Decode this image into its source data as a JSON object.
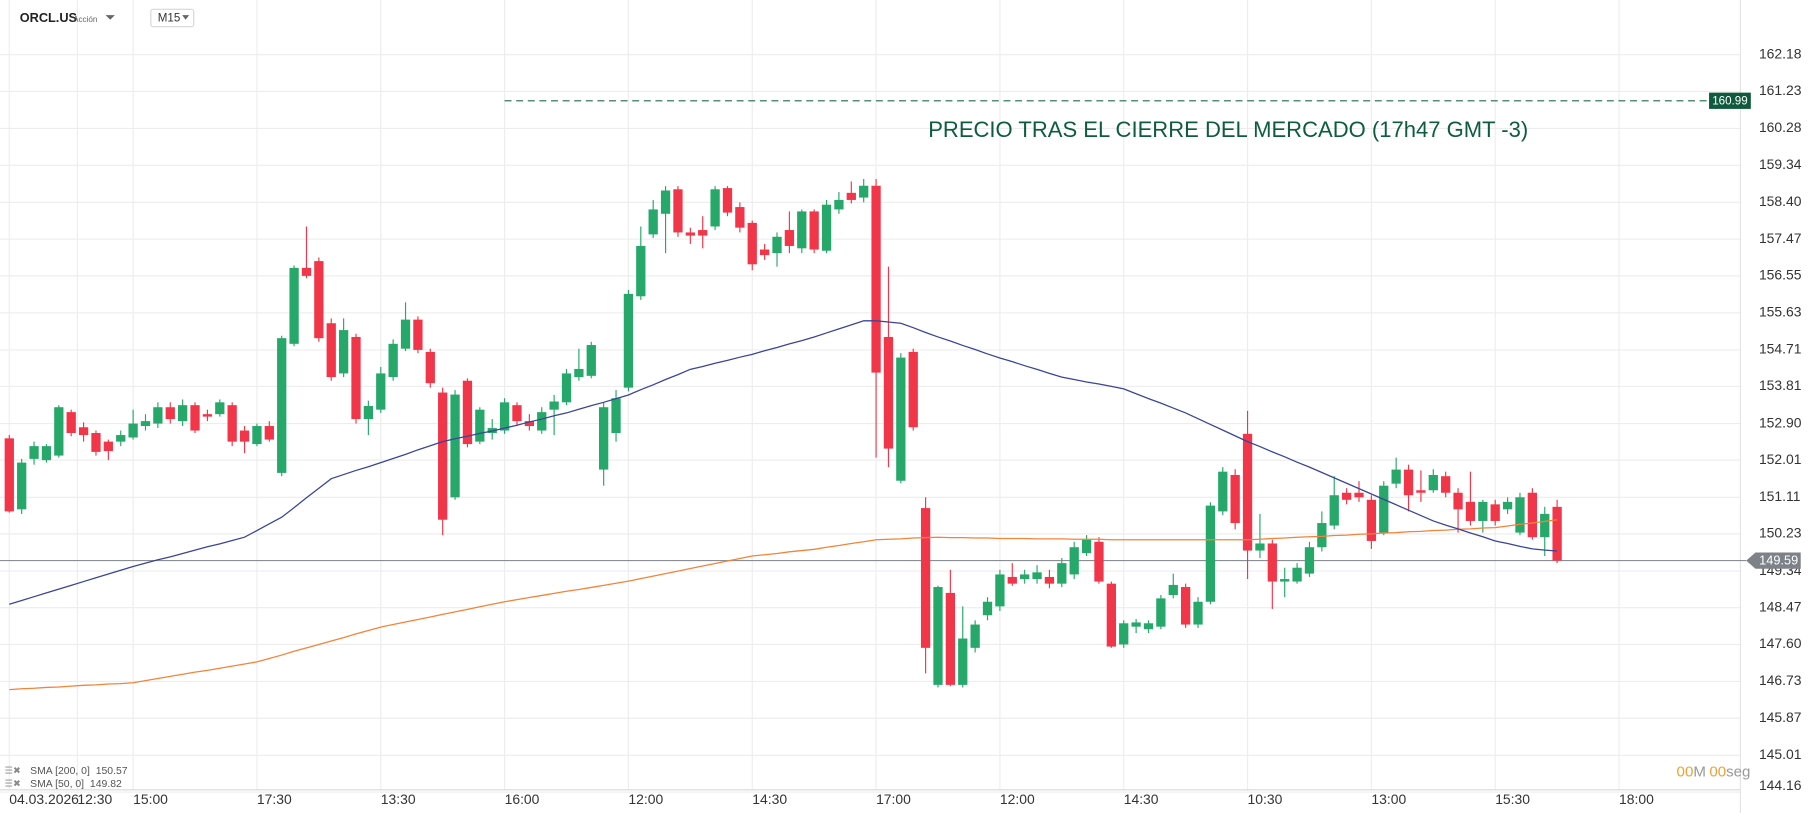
{
  "header": {
    "symbol": "ORCL.US",
    "instrument": "Acción",
    "timeframe": "M15"
  },
  "chart_data": {
    "type": "candlestick",
    "open": [
      152.54,
      150.82,
      152.04,
      152.01,
      152.12,
      153.18,
      152.81,
      152.67,
      152.46,
      152.46,
      152.56,
      152.84,
      152.9,
      153.3,
      152.96,
      153.35,
      153.13,
      153.13,
      153.35,
      152.73,
      152.4,
      152.84,
      151.7,
      154.86,
      156.75,
      156.92,
      155.37,
      154.13,
      155.03,
      153.01,
      153.24,
      154.04,
      154.74,
      155.46,
      154.66,
      153.66,
      151.11,
      153.95,
      152.46,
      152.67,
      152.73,
      153.35,
      152.96,
      152.73,
      153.24,
      153.42,
      154.04,
      154.07,
      151.78,
      152.67,
      153.78,
      156.04,
      157.59,
      158.11,
      158.73,
      157.64,
      157.7,
      157.79,
      158.76,
      158.28,
      157.88,
      157.21,
      157.12,
      157.7,
      157.24,
      158.17,
      157.18,
      158.22,
      158.64,
      158.52,
      158.82,
      155.03,
      151.51,
      154.66,
      150.85,
      146.65,
      148.82,
      146.65,
      147.52,
      148.29,
      148.5,
      149.2,
      149.15,
      149.15,
      149.2,
      149.04,
      149.26,
      149.77,
      150.04,
      149.04,
      147.6,
      148.02,
      147.96,
      148.02,
      148.77,
      148.96,
      148.07,
      148.61,
      150.77,
      151.65,
      152.65,
      149.83,
      150.0,
      149.09,
      149.09,
      149.28,
      149.91,
      150.43,
      151.22,
      151.22,
      151.05,
      150.26,
      151.44,
      151.78,
      151.28,
      151.28,
      151.62,
      151.22,
      151.0,
      150.54,
      150.94,
      150.82,
      150.26,
      151.22,
      150.15,
      150.88
    ],
    "high": [
      152.62,
      152.04,
      152.46,
      152.4,
      153.35,
      153.24,
      152.93,
      152.73,
      152.51,
      152.73,
      153.24,
      153.13,
      153.42,
      153.42,
      153.49,
      153.42,
      153.24,
      153.49,
      153.42,
      152.84,
      152.9,
      152.96,
      155.06,
      156.81,
      157.79,
      157.01,
      155.49,
      155.49,
      155.11,
      153.46,
      154.29,
      154.97,
      155.89,
      155.54,
      154.74,
      153.78,
      153.72,
      154.01,
      153.3,
      153.01,
      153.52,
      153.42,
      153.13,
      153.3,
      153.6,
      154.24,
      154.74,
      154.91,
      153.42,
      153.72,
      156.2,
      157.79,
      158.46,
      158.81,
      158.81,
      157.76,
      158.05,
      158.81,
      158.81,
      158.4,
      157.94,
      157.35,
      157.64,
      158.17,
      158.22,
      158.22,
      158.46,
      158.66,
      158.93,
      158.99,
      158.99,
      156.78,
      154.63,
      154.74,
      151.11,
      148.99,
      149.37,
      148.5,
      148.17,
      148.72,
      149.37,
      149.53,
      149.37,
      149.48,
      149.37,
      149.65,
      150.04,
      150.2,
      150.15,
      149.09,
      148.17,
      148.2,
      148.17,
      148.77,
      149.28,
      149.04,
      148.72,
      150.99,
      151.84,
      151.79,
      153.21,
      150.71,
      150.09,
      149.42,
      149.53,
      150.04,
      150.77,
      151.62,
      151.33,
      151.5,
      151.16,
      151.5,
      152.07,
      151.9,
      151.76,
      151.79,
      151.73,
      151.33,
      151.73,
      151.05,
      151.05,
      151.11,
      151.22,
      151.33,
      150.88,
      151.05
    ],
    "low": [
      150.74,
      150.71,
      151.9,
      151.95,
      152.07,
      152.59,
      152.46,
      152.12,
      152.01,
      152.35,
      152.51,
      152.73,
      152.79,
      152.9,
      152.84,
      152.67,
      152.96,
      153.07,
      152.35,
      152.18,
      152.35,
      152.46,
      151.62,
      154.8,
      156.49,
      154.91,
      153.95,
      154.04,
      152.9,
      152.62,
      153.16,
      153.95,
      154.68,
      154.63,
      153.78,
      150.2,
      151.05,
      152.32,
      152.4,
      152.51,
      152.65,
      152.84,
      152.73,
      152.65,
      152.62,
      153.35,
      153.95,
      154.01,
      151.39,
      152.46,
      153.69,
      155.95,
      157.5,
      157.12,
      157.53,
      157.35,
      157.24,
      157.7,
      158.05,
      157.64,
      156.69,
      156.95,
      156.78,
      157.12,
      157.12,
      157.12,
      157.12,
      158.11,
      158.37,
      158.4,
      152.07,
      151.84,
      151.45,
      152.73,
      146.92,
      146.59,
      146.62,
      146.59,
      147.41,
      148.17,
      148.39,
      148.99,
      149.04,
      149.04,
      148.93,
      148.96,
      149.15,
      149.7,
      149.04,
      147.52,
      147.52,
      147.87,
      147.87,
      147.96,
      148.69,
      147.99,
      147.99,
      148.55,
      150.68,
      150.34,
      149.15,
      149.65,
      148.44,
      148.72,
      149.04,
      149.2,
      149.81,
      150.34,
      150.94,
      151.0,
      149.87,
      150.2,
      151.33,
      150.77,
      151.0,
      151.22,
      151.11,
      150.26,
      150.43,
      150.26,
      150.43,
      150.71,
      150.2,
      150.09,
      149.7,
      149.53
    ],
    "close": [
      150.77,
      151.95,
      152.35,
      152.35,
      153.3,
      152.67,
      152.62,
      152.21,
      152.23,
      152.62,
      152.9,
      152.96,
      153.3,
      153.01,
      153.35,
      152.73,
      153.07,
      153.42,
      152.46,
      152.46,
      152.84,
      152.51,
      155.0,
      156.75,
      156.55,
      155.0,
      154.04,
      155.2,
      153.01,
      153.33,
      154.13,
      154.86,
      155.46,
      154.71,
      153.89,
      150.57,
      153.61,
      152.4,
      153.24,
      152.79,
      153.42,
      152.96,
      152.84,
      153.18,
      153.44,
      154.13,
      154.24,
      154.83,
      153.3,
      153.52,
      156.1,
      157.3,
      158.22,
      158.7,
      157.64,
      157.56,
      157.56,
      158.73,
      158.14,
      157.76,
      156.84,
      157.07,
      157.53,
      157.3,
      158.17,
      157.21,
      158.34,
      158.46,
      158.46,
      158.82,
      154.15,
      152.29,
      154.52,
      152.81,
      147.52,
      148.96,
      146.65,
      147.74,
      148.07,
      148.61,
      149.26,
      149.04,
      149.26,
      149.31,
      149.04,
      149.53,
      149.91,
      150.09,
      149.09,
      147.55,
      148.1,
      148.12,
      148.1,
      148.69,
      149.01,
      148.07,
      148.61,
      150.91,
      151.73,
      150.49,
      149.83,
      150.0,
      149.09,
      149.15,
      149.42,
      149.91,
      150.49,
      151.16,
      151.05,
      151.11,
      150.06,
      151.39,
      151.78,
      151.16,
      151.22,
      151.65,
      151.22,
      150.82,
      150.54,
      151.0,
      150.54,
      151.0,
      151.11,
      150.15,
      150.71,
      149.59
    ],
    "up_color": "#26a86b",
    "down_color": "#f2364a",
    "series": [
      {
        "name": "SMA [200, 0]",
        "color": "#f2843a",
        "values": [
          146.54,
          146.56,
          146.57,
          146.59,
          146.6,
          146.62,
          146.64,
          146.65,
          146.67,
          146.68,
          146.7,
          146.75,
          146.8,
          146.85,
          146.9,
          146.95,
          146.99,
          147.04,
          147.09,
          147.14,
          147.19,
          147.27,
          147.35,
          147.44,
          147.52,
          147.6,
          147.68,
          147.76,
          147.85,
          147.93,
          148.01,
          148.07,
          148.13,
          148.19,
          148.25,
          148.31,
          148.37,
          148.43,
          148.49,
          148.55,
          148.61,
          148.66,
          148.71,
          148.76,
          148.81,
          148.86,
          148.9,
          148.95,
          149.0,
          149.05,
          149.1,
          149.16,
          149.22,
          149.28,
          149.34,
          149.4,
          149.46,
          149.52,
          149.58,
          149.64,
          149.7,
          149.73,
          149.76,
          149.8,
          149.83,
          149.86,
          149.91,
          149.95,
          150.0,
          150.04,
          150.09,
          150.1,
          150.11,
          150.13,
          150.14,
          150.15,
          150.14,
          150.14,
          150.13,
          150.13,
          150.12,
          150.12,
          150.12,
          150.11,
          150.11,
          150.11,
          150.1,
          150.1,
          150.1,
          150.09,
          150.09,
          150.09,
          150.09,
          150.09,
          150.09,
          150.09,
          150.09,
          150.09,
          150.09,
          150.09,
          150.09,
          150.1,
          150.12,
          150.13,
          150.15,
          150.16,
          150.17,
          150.19,
          150.2,
          150.22,
          150.23,
          150.25,
          150.26,
          150.28,
          150.29,
          150.31,
          150.32,
          150.34,
          150.35,
          150.37,
          150.38,
          150.42,
          150.46,
          150.49,
          150.53,
          150.57
        ]
      },
      {
        "name": "SMA [50, 0]",
        "color": "#3a4596",
        "values": [
          148.55,
          148.64,
          148.73,
          148.82,
          148.91,
          149.0,
          149.09,
          149.18,
          149.27,
          149.36,
          149.45,
          149.53,
          149.61,
          149.68,
          149.76,
          149.84,
          149.92,
          149.99,
          150.07,
          150.15,
          150.31,
          150.47,
          150.63,
          150.86,
          151.1,
          151.33,
          151.56,
          151.66,
          151.76,
          151.85,
          151.95,
          152.05,
          152.15,
          152.26,
          152.36,
          152.46,
          152.53,
          152.59,
          152.66,
          152.72,
          152.79,
          152.86,
          152.94,
          153.01,
          153.09,
          153.16,
          153.25,
          153.34,
          153.42,
          153.51,
          153.6,
          153.73,
          153.85,
          153.98,
          154.1,
          154.23,
          154.3,
          154.38,
          154.45,
          154.53,
          154.6,
          154.69,
          154.77,
          154.86,
          154.94,
          155.03,
          155.13,
          155.23,
          155.33,
          155.43,
          155.43,
          155.4,
          155.37,
          155.26,
          155.14,
          155.03,
          154.93,
          154.82,
          154.72,
          154.61,
          154.51,
          154.42,
          154.32,
          154.23,
          154.13,
          154.04,
          153.98,
          153.92,
          153.87,
          153.81,
          153.75,
          153.63,
          153.51,
          153.4,
          153.28,
          153.16,
          153.02,
          152.88,
          152.74,
          152.6,
          152.46,
          152.34,
          152.21,
          152.09,
          151.96,
          151.84,
          151.71,
          151.58,
          151.45,
          151.32,
          151.19,
          151.06,
          150.93,
          150.8,
          150.67,
          150.54,
          150.44,
          150.35,
          150.25,
          150.16,
          150.06,
          150.0,
          149.93,
          149.87,
          149.84,
          149.82
        ]
      }
    ],
    "xlim": [
      -0.75,
      139.8
    ],
    "xticks": [
      {
        "value": 0,
        "label": "04.03.2026"
      },
      {
        "value": 5.5,
        "label": "12:30"
      },
      {
        "value": 10,
        "label": "15:00"
      },
      {
        "value": 20,
        "label": "17:30"
      },
      {
        "value": 30,
        "label": "13:30"
      },
      {
        "value": 40,
        "label": "16:00"
      },
      {
        "value": 50,
        "label": "12:00"
      },
      {
        "value": 60,
        "label": "14:30"
      },
      {
        "value": 70,
        "label": "17:00"
      },
      {
        "value": 80,
        "label": "12:00"
      },
      {
        "value": 90,
        "label": "14:30"
      },
      {
        "value": 100,
        "label": "10:30"
      },
      {
        "value": 110,
        "label": "13:00"
      },
      {
        "value": 120,
        "label": "15:30"
      },
      {
        "value": 130,
        "label": "18:00"
      }
    ],
    "ylim": [
      144.16,
      163.14
    ],
    "log_scale": true,
    "grid": true,
    "yticks": [
      162.18,
      161.23,
      160.28,
      159.34,
      {
        "value": 158.4,
        "label": "158.40"
      },
      157.47,
      156.55,
      155.63,
      154.71,
      153.81,
      {
        "value": 152.9,
        "label": "152.90"
      },
      152.01,
      151.11,
      150.23,
      149.34,
      148.47,
      {
        "value": 147.6,
        "label": "147.60"
      },
      146.73,
      145.87,
      145.01,
      144.16
    ],
    "last_price": 149.59,
    "reference_line": 160.99,
    "annotation": "PRECIO TRAS EL CIERRE DEL MERCADO (17h47 GMT -3)"
  },
  "countdown": {
    "minutes": "00",
    "minutes_unit": "M",
    "seconds": "00",
    "seconds_unit": "seg"
  }
}
